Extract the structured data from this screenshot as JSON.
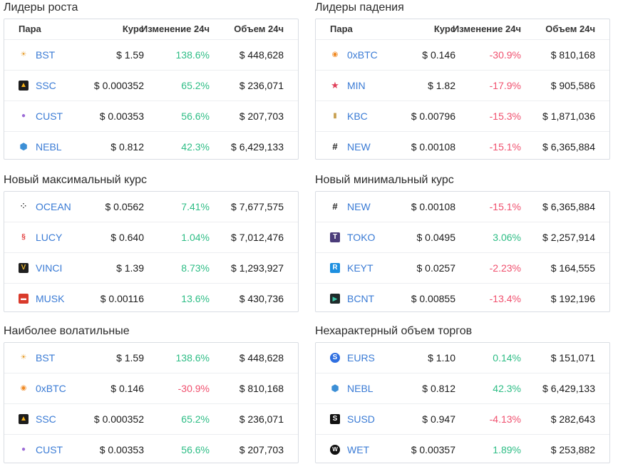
{
  "columns": {
    "pair": "Пара",
    "price": "Курс",
    "change": "Изменение 24ч",
    "volume": "Объем 24ч"
  },
  "colors": {
    "up": "#2dbd85",
    "down": "#f0506e",
    "link": "#3a7bd5"
  },
  "panels": [
    {
      "title": "Лидеры роста",
      "rows": [
        {
          "pair": "BST",
          "icon": "bst-icon",
          "price": "$ 1.59",
          "change": "138.6%",
          "dir": "up",
          "volume": "$ 448,628"
        },
        {
          "pair": "SSC",
          "icon": "ssc-icon",
          "price": "$ 0.000352",
          "change": "65.2%",
          "dir": "up",
          "volume": "$ 236,071"
        },
        {
          "pair": "CUST",
          "icon": "cust-icon",
          "price": "$ 0.00353",
          "change": "56.6%",
          "dir": "up",
          "volume": "$ 207,703"
        },
        {
          "pair": "NEBL",
          "icon": "nebl-icon",
          "price": "$ 0.812",
          "change": "42.3%",
          "dir": "up",
          "volume": "$ 6,429,133"
        }
      ]
    },
    {
      "title": "Лидеры падения",
      "rows": [
        {
          "pair": "0xBTC",
          "icon": "0xbtc-icon",
          "price": "$ 0.146",
          "change": "-30.9%",
          "dir": "down",
          "volume": "$ 810,168"
        },
        {
          "pair": "MIN",
          "icon": "min-icon",
          "price": "$ 1.82",
          "change": "-17.9%",
          "dir": "down",
          "volume": "$ 905,586"
        },
        {
          "pair": "KBC",
          "icon": "kbc-icon",
          "price": "$ 0.00796",
          "change": "-15.3%",
          "dir": "down",
          "volume": "$ 1,871,036"
        },
        {
          "pair": "NEW",
          "icon": "new-icon",
          "price": "$ 0.00108",
          "change": "-15.1%",
          "dir": "down",
          "volume": "$ 6,365,884"
        }
      ]
    },
    {
      "title": "Новый максимальный курс",
      "rows": [
        {
          "pair": "OCEAN",
          "icon": "ocean-icon",
          "price": "$ 0.0562",
          "change": "7.41%",
          "dir": "up",
          "volume": "$ 7,677,575"
        },
        {
          "pair": "LUCY",
          "icon": "lucy-icon",
          "price": "$ 0.640",
          "change": "1.04%",
          "dir": "up",
          "volume": "$ 7,012,476"
        },
        {
          "pair": "VINCI",
          "icon": "vinci-icon",
          "price": "$ 1.39",
          "change": "8.73%",
          "dir": "up",
          "volume": "$ 1,293,927"
        },
        {
          "pair": "MUSK",
          "icon": "musk-icon",
          "price": "$ 0.00116",
          "change": "13.6%",
          "dir": "up",
          "volume": "$ 430,736"
        }
      ]
    },
    {
      "title": "Новый минимальный курс",
      "rows": [
        {
          "pair": "NEW",
          "icon": "new-icon",
          "price": "$ 0.00108",
          "change": "-15.1%",
          "dir": "down",
          "volume": "$ 6,365,884"
        },
        {
          "pair": "TOKO",
          "icon": "toko-icon",
          "price": "$ 0.0495",
          "change": "3.06%",
          "dir": "up",
          "volume": "$ 2,257,914"
        },
        {
          "pair": "KEYT",
          "icon": "keyt-icon",
          "price": "$ 0.0257",
          "change": "-2.23%",
          "dir": "down",
          "volume": "$ 164,555"
        },
        {
          "pair": "BCNT",
          "icon": "bcnt-icon",
          "price": "$ 0.00855",
          "change": "-13.4%",
          "dir": "down",
          "volume": "$ 192,196"
        }
      ]
    },
    {
      "title": "Наиболее волатильные",
      "rows": [
        {
          "pair": "BST",
          "icon": "bst-icon",
          "price": "$ 1.59",
          "change": "138.6%",
          "dir": "up",
          "volume": "$ 448,628"
        },
        {
          "pair": "0xBTC",
          "icon": "0xbtc-icon",
          "price": "$ 0.146",
          "change": "-30.9%",
          "dir": "down",
          "volume": "$ 810,168"
        },
        {
          "pair": "SSC",
          "icon": "ssc-icon",
          "price": "$ 0.000352",
          "change": "65.2%",
          "dir": "up",
          "volume": "$ 236,071"
        },
        {
          "pair": "CUST",
          "icon": "cust-icon",
          "price": "$ 0.00353",
          "change": "56.6%",
          "dir": "up",
          "volume": "$ 207,703"
        }
      ]
    },
    {
      "title": "Нехарактерный объем торгов",
      "rows": [
        {
          "pair": "EURS",
          "icon": "eurs-icon",
          "price": "$ 1.10",
          "change": "0.14%",
          "dir": "up",
          "volume": "$ 151,071"
        },
        {
          "pair": "NEBL",
          "icon": "nebl-icon",
          "price": "$ 0.812",
          "change": "42.3%",
          "dir": "up",
          "volume": "$ 6,429,133"
        },
        {
          "pair": "SUSD",
          "icon": "susd-icon",
          "price": "$ 0.947",
          "change": "-4.13%",
          "dir": "down",
          "volume": "$ 282,643"
        },
        {
          "pair": "WET",
          "icon": "wet-icon",
          "price": "$ 0.00357",
          "change": "1.89%",
          "dir": "up",
          "volume": "$ 253,882"
        }
      ]
    }
  ]
}
